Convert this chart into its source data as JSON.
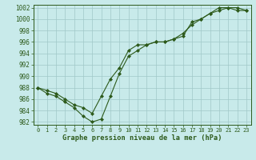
{
  "line1": {
    "x": [
      0,
      1,
      2,
      3,
      4,
      5,
      6,
      7,
      8,
      9,
      10,
      11,
      12,
      13,
      14,
      15,
      16,
      17,
      18,
      19,
      20,
      21,
      22,
      23
    ],
    "y": [
      988.0,
      987.5,
      987.0,
      986.0,
      985.0,
      984.5,
      983.5,
      986.5,
      989.5,
      991.5,
      994.5,
      995.5,
      995.5,
      996.0,
      996.0,
      996.5,
      997.0,
      999.5,
      1000.0,
      1001.0,
      1002.0,
      1002.0,
      1002.0,
      1001.5
    ]
  },
  "line2": {
    "x": [
      0,
      1,
      2,
      3,
      4,
      5,
      6,
      7,
      8,
      9,
      10,
      11,
      12,
      13,
      14,
      15,
      16,
      17,
      18,
      19,
      20,
      21,
      22,
      23
    ],
    "y": [
      988.0,
      987.0,
      986.5,
      985.5,
      984.5,
      983.0,
      982.0,
      982.5,
      986.5,
      990.5,
      993.5,
      994.5,
      995.5,
      996.0,
      996.0,
      996.5,
      997.5,
      999.0,
      1000.0,
      1001.0,
      1001.5,
      1002.0,
      1001.5,
      1001.5
    ]
  },
  "ylim": [
    981.5,
    1002.5
  ],
  "xlim": [
    -0.5,
    23.5
  ],
  "yticks": [
    982,
    984,
    986,
    988,
    990,
    992,
    994,
    996,
    998,
    1000,
    1002
  ],
  "xticks": [
    0,
    1,
    2,
    3,
    4,
    5,
    6,
    7,
    8,
    9,
    10,
    11,
    12,
    13,
    14,
    15,
    16,
    17,
    18,
    19,
    20,
    21,
    22,
    23
  ],
  "xlabel": "Graphe pression niveau de la mer (hPa)",
  "line_color": "#2d5a1b",
  "bg_color": "#c8eaea",
  "grid_color": "#a0c8c8",
  "marker": "D",
  "marker_size": 2.0,
  "line_width": 0.8,
  "tick_fontsize": 5.0,
  "xlabel_fontsize": 6.2,
  "ytick_fontsize": 5.5
}
